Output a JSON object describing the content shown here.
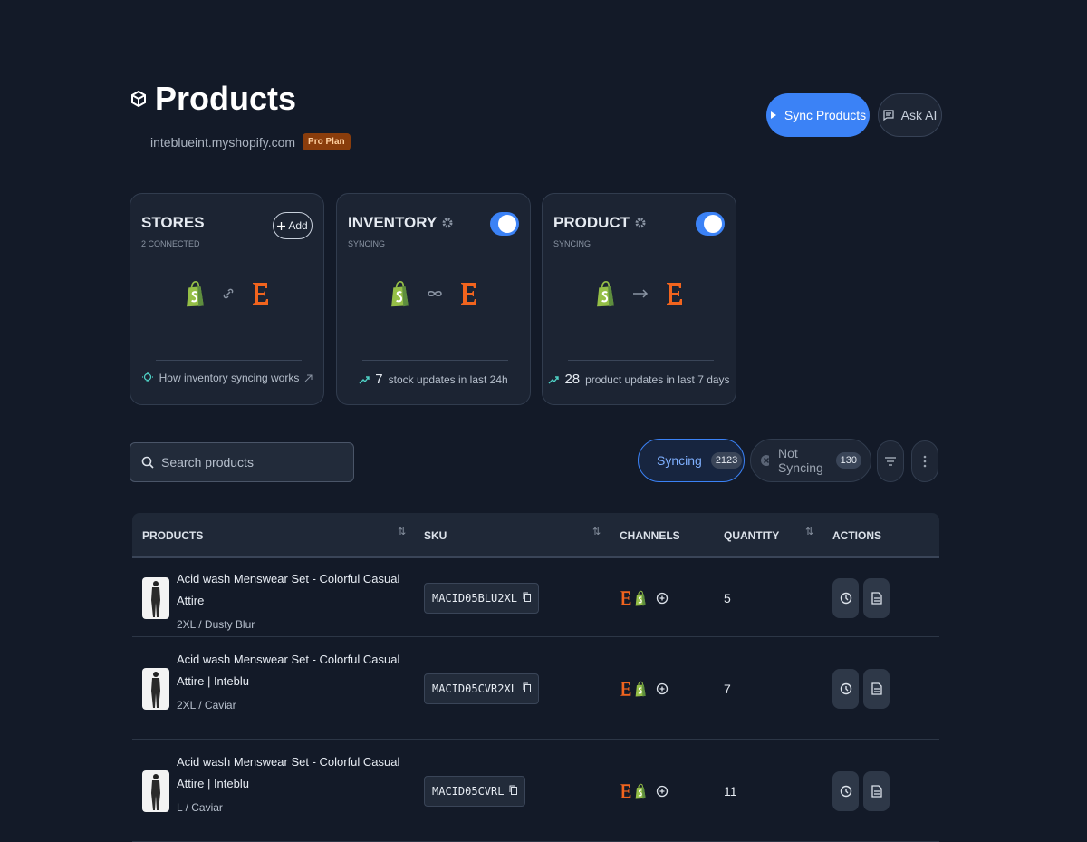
{
  "header": {
    "title": "Products",
    "store": "inteblueint.myshopify.com",
    "plan": "Pro Plan"
  },
  "actions": {
    "sync": "Sync Products",
    "ask": "Ask AI"
  },
  "cards": [
    {
      "title": "STORES",
      "subtitle": "2 CONNECTED",
      "button": "Add",
      "footer": "How inventory syncing works"
    },
    {
      "title": "INVENTORY",
      "subtitle": "SYNCING",
      "count": 7,
      "footer": "stock updates in last 24h"
    },
    {
      "title": "PRODUCT",
      "subtitle": "SYNCING",
      "count": 28,
      "footer": "product updates in last 7 days"
    }
  ],
  "search": {
    "placeholder": "Search products"
  },
  "filters": [
    {
      "label": "Syncing",
      "count": 2123
    },
    {
      "label": "Not Syncing",
      "count": 130
    }
  ],
  "table": {
    "columns": [
      "PRODUCTS",
      "SKU",
      "CHANNELS",
      "QUANTITY",
      "ACTIONS"
    ],
    "rows": [
      {
        "name": "Acid wash Menswear Set - Colorful Casual Attire",
        "variant": "2XL / Dusty Blur",
        "sku": "MACID05BLU2XL",
        "quantity": 5
      },
      {
        "name": "Acid wash Menswear Set - Colorful Casual Attire | Inteblu",
        "variant": "2XL / Caviar",
        "sku": "MACID05CVR2XL",
        "quantity": 7
      },
      {
        "name": "Acid wash Menswear Set - Colorful Casual Attire | Inteblu",
        "variant": "L / Caviar",
        "sku": "MACID05CVRL",
        "quantity": 11
      }
    ]
  }
}
